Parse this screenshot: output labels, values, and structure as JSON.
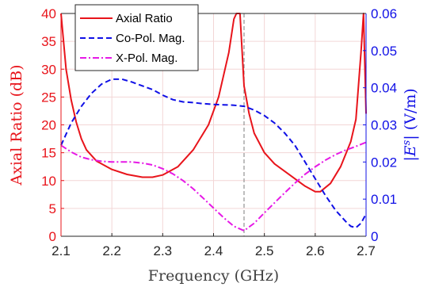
{
  "chart_data": {
    "type": "line",
    "xlabel": "Frequency (GHz)",
    "ylabel_left": "Axial Ratio (dB)",
    "ylabel_right_parts": [
      "|",
      "E",
      "s",
      "| (V/m)"
    ],
    "xlim": [
      2.1,
      2.7
    ],
    "ylim_left": [
      0,
      40
    ],
    "ylim_right": [
      0,
      0.06
    ],
    "x_ticks": [
      "2.1",
      "2.2",
      "2.3",
      "2.4",
      "2.5",
      "2.6",
      "2.7"
    ],
    "y_left_ticks": [
      "0",
      "5",
      "10",
      "15",
      "20",
      "25",
      "30",
      "35",
      "40"
    ],
    "y_right_ticks": [
      "0",
      "0.01",
      "0.02",
      "0.03",
      "0.04",
      "0.05",
      "0.06"
    ],
    "grid": true,
    "legend_position": "top-left",
    "reference_line_x": 2.46,
    "colors": {
      "axial": "#e8141b",
      "copol": "#1010e6",
      "xpol": "#e619e6",
      "ref": "#9a9a9a",
      "left_axis": "#e8141b",
      "right_axis": "#1010e6"
    },
    "series": [
      {
        "name": "Axial Ratio",
        "axis": "left",
        "style": "solid",
        "x": [
          2.1,
          2.11,
          2.12,
          2.13,
          2.14,
          2.15,
          2.17,
          2.2,
          2.23,
          2.26,
          2.28,
          2.3,
          2.33,
          2.36,
          2.39,
          2.41,
          2.43,
          2.44,
          2.445,
          2.452,
          2.46,
          2.47,
          2.48,
          2.5,
          2.52,
          2.55,
          2.58,
          2.6,
          2.61,
          2.63,
          2.65,
          2.67,
          2.68,
          2.69,
          2.695,
          2.7
        ],
        "y": [
          40,
          30,
          24.5,
          20.5,
          17.5,
          15.5,
          13.5,
          12,
          11.1,
          10.6,
          10.6,
          11,
          12.5,
          15.5,
          20,
          25,
          33,
          39,
          40,
          40,
          27,
          22,
          18.5,
          15,
          13,
          11,
          9,
          8,
          8,
          9.5,
          12.5,
          17,
          21,
          33,
          40,
          22
        ]
      },
      {
        "name": "Co-Pol. Mag.",
        "axis": "right",
        "style": "dashed",
        "x": [
          2.1,
          2.12,
          2.14,
          2.16,
          2.18,
          2.2,
          2.22,
          2.24,
          2.26,
          2.28,
          2.3,
          2.32,
          2.34,
          2.36,
          2.38,
          2.4,
          2.42,
          2.44,
          2.46,
          2.48,
          2.5,
          2.52,
          2.54,
          2.56,
          2.58,
          2.6,
          2.62,
          2.64,
          2.66,
          2.67,
          2.68,
          2.69,
          2.7
        ],
        "y": [
          0.0245,
          0.0305,
          0.035,
          0.0385,
          0.041,
          0.0423,
          0.0423,
          0.0415,
          0.0405,
          0.0395,
          0.038,
          0.0368,
          0.0362,
          0.036,
          0.0357,
          0.0355,
          0.0354,
          0.0353,
          0.035,
          0.034,
          0.0325,
          0.0305,
          0.0278,
          0.0245,
          0.02,
          0.0155,
          0.011,
          0.007,
          0.004,
          0.0027,
          0.0023,
          0.0035,
          0.006
        ]
      },
      {
        "name": "X-Pol. Mag.",
        "axis": "right",
        "style": "dashdot",
        "x": [
          2.1,
          2.12,
          2.14,
          2.16,
          2.18,
          2.2,
          2.22,
          2.24,
          2.26,
          2.28,
          2.3,
          2.32,
          2.34,
          2.36,
          2.38,
          2.4,
          2.42,
          2.44,
          2.46,
          2.48,
          2.5,
          2.52,
          2.54,
          2.56,
          2.58,
          2.6,
          2.62,
          2.64,
          2.66,
          2.68,
          2.7
        ],
        "y": [
          0.0245,
          0.0227,
          0.0213,
          0.0206,
          0.0202,
          0.02,
          0.02,
          0.02,
          0.0197,
          0.0192,
          0.0182,
          0.0168,
          0.015,
          0.0128,
          0.0102,
          0.0076,
          0.005,
          0.0027,
          0.0015,
          0.0035,
          0.0063,
          0.009,
          0.0117,
          0.0143,
          0.0167,
          0.0187,
          0.0205,
          0.022,
          0.0232,
          0.0242,
          0.0253
        ]
      }
    ]
  }
}
